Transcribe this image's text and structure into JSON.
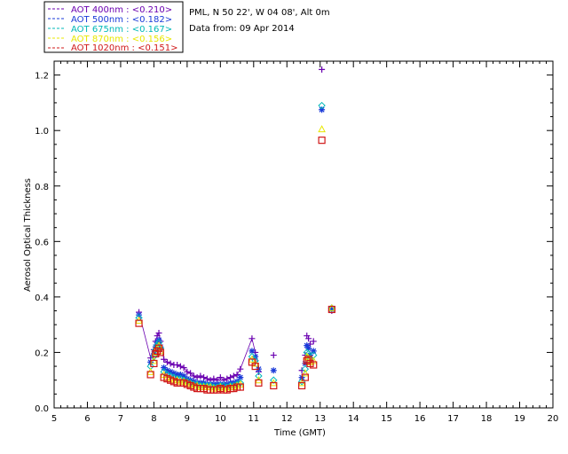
{
  "info": {
    "location": "PML, N 50 22', W 04 08', Alt 0m",
    "date_line": "Data from: 09 Apr 2014"
  },
  "chart_data": {
    "type": "scatter",
    "title": "",
    "xlabel": "Time (GMT)",
    "ylabel": "Aerosol Optical Thickness",
    "xlim": [
      5,
      20
    ],
    "ylim": [
      0.0,
      1.25
    ],
    "x_ticks": [
      "5",
      "6",
      "7",
      "8",
      "9",
      "10",
      "11",
      "12",
      "13",
      "14",
      "15",
      "16",
      "17",
      "18",
      "19",
      "20"
    ],
    "y_ticks": [
      "0.0",
      "0.2",
      "0.4",
      "0.6",
      "0.8",
      "1.0",
      "1.2"
    ],
    "grid": false,
    "legend_position": "top-left, outside plot",
    "series": [
      {
        "name": "AOT  400nm : <0.210>",
        "color": "#6a00b0",
        "marker": "plus",
        "x": [
          7.55,
          7.9,
          8.0,
          8.05,
          8.1,
          8.15,
          8.2,
          8.3,
          8.4,
          8.5,
          8.6,
          8.7,
          8.8,
          8.9,
          9.0,
          9.1,
          9.2,
          9.3,
          9.4,
          9.5,
          9.6,
          9.7,
          9.8,
          9.9,
          10.0,
          10.1,
          10.2,
          10.3,
          10.4,
          10.5,
          10.6,
          10.95,
          11.05,
          11.15,
          11.6,
          12.45,
          12.55,
          12.6,
          12.65,
          12.7,
          12.8,
          13.05,
          13.35
        ],
        "y": [
          0.345,
          0.18,
          0.21,
          0.24,
          0.26,
          0.27,
          0.24,
          0.175,
          0.165,
          0.16,
          0.155,
          0.155,
          0.15,
          0.145,
          0.13,
          0.125,
          0.115,
          0.11,
          0.115,
          0.11,
          0.105,
          0.1,
          0.105,
          0.1,
          0.11,
          0.1,
          0.105,
          0.11,
          0.115,
          0.12,
          0.14,
          0.25,
          0.2,
          0.13,
          0.19,
          0.135,
          0.19,
          0.26,
          0.25,
          0.23,
          0.24,
          1.22,
          0.35
        ]
      },
      {
        "name": "AOT  500nm : <0.182>",
        "color": "#1a3ad8",
        "marker": "asterisk",
        "x": [
          7.55,
          7.9,
          8.0,
          8.05,
          8.1,
          8.15,
          8.2,
          8.3,
          8.4,
          8.5,
          8.6,
          8.7,
          8.8,
          8.9,
          9.0,
          9.1,
          9.2,
          9.3,
          9.4,
          9.5,
          9.6,
          9.7,
          9.8,
          9.9,
          10.0,
          10.1,
          10.2,
          10.3,
          10.4,
          10.5,
          10.6,
          10.95,
          11.05,
          11.15,
          11.6,
          12.45,
          12.55,
          12.6,
          12.65,
          12.7,
          12.8,
          13.05,
          13.35
        ],
        "y": [
          0.335,
          0.165,
          0.195,
          0.22,
          0.235,
          0.245,
          0.22,
          0.145,
          0.135,
          0.13,
          0.125,
          0.12,
          0.12,
          0.115,
          0.105,
          0.1,
          0.095,
          0.09,
          0.09,
          0.09,
          0.085,
          0.085,
          0.085,
          0.085,
          0.085,
          0.085,
          0.085,
          0.09,
          0.09,
          0.095,
          0.11,
          0.205,
          0.185,
          0.14,
          0.135,
          0.11,
          0.16,
          0.225,
          0.215,
          0.19,
          0.205,
          1.075,
          0.355
        ]
      },
      {
        "name": "AOT  675nm : <0.167>",
        "color": "#00b8b8",
        "marker": "diamond",
        "x": [
          7.55,
          7.9,
          8.0,
          8.05,
          8.1,
          8.15,
          8.2,
          8.3,
          8.4,
          8.5,
          8.6,
          8.7,
          8.8,
          8.9,
          9.0,
          9.1,
          9.2,
          9.3,
          9.4,
          9.5,
          9.6,
          9.7,
          9.8,
          9.9,
          10.0,
          10.1,
          10.2,
          10.3,
          10.4,
          10.5,
          10.6,
          10.95,
          11.05,
          11.15,
          11.6,
          12.45,
          12.55,
          12.6,
          12.65,
          12.7,
          12.8,
          13.05,
          13.35
        ],
        "y": [
          0.325,
          0.15,
          0.185,
          0.21,
          0.225,
          0.235,
          0.215,
          0.13,
          0.12,
          0.115,
          0.11,
          0.105,
          0.105,
          0.1,
          0.095,
          0.09,
          0.085,
          0.085,
          0.08,
          0.08,
          0.08,
          0.08,
          0.075,
          0.075,
          0.08,
          0.08,
          0.075,
          0.08,
          0.08,
          0.085,
          0.09,
          0.185,
          0.17,
          0.115,
          0.1,
          0.095,
          0.14,
          0.2,
          0.195,
          0.175,
          0.19,
          1.09,
          0.36
        ]
      },
      {
        "name": "AOT  870nm : <0.156>",
        "color": "#e8e800",
        "marker": "triangle",
        "x": [
          7.55,
          7.9,
          8.0,
          8.05,
          8.1,
          8.15,
          8.2,
          8.3,
          8.4,
          8.5,
          8.6,
          8.7,
          8.8,
          8.9,
          9.0,
          9.1,
          9.2,
          9.3,
          9.4,
          9.5,
          9.6,
          9.7,
          9.8,
          9.9,
          10.0,
          10.1,
          10.2,
          10.3,
          10.4,
          10.5,
          10.6,
          10.95,
          11.05,
          11.15,
          11.6,
          12.45,
          12.55,
          12.6,
          12.65,
          12.7,
          12.8,
          13.05,
          13.35
        ],
        "y": [
          0.315,
          0.13,
          0.17,
          0.2,
          0.215,
          0.225,
          0.205,
          0.12,
          0.11,
          0.105,
          0.1,
          0.1,
          0.095,
          0.095,
          0.09,
          0.085,
          0.08,
          0.08,
          0.075,
          0.075,
          0.075,
          0.075,
          0.07,
          0.07,
          0.075,
          0.07,
          0.07,
          0.075,
          0.075,
          0.08,
          0.085,
          0.175,
          0.16,
          0.1,
          0.09,
          0.09,
          0.125,
          0.185,
          0.18,
          0.165,
          0.17,
          1.005,
          0.36
        ]
      },
      {
        "name": "AOT 1020nm : <0.151>",
        "color": "#d01818",
        "marker": "square",
        "x": [
          7.55,
          7.9,
          8.0,
          8.05,
          8.1,
          8.15,
          8.2,
          8.3,
          8.4,
          8.5,
          8.6,
          8.7,
          8.8,
          8.9,
          9.0,
          9.1,
          9.2,
          9.3,
          9.4,
          9.5,
          9.6,
          9.7,
          9.8,
          9.9,
          10.0,
          10.1,
          10.2,
          10.3,
          10.4,
          10.5,
          10.6,
          10.95,
          11.05,
          11.15,
          11.6,
          12.45,
          12.55,
          12.6,
          12.65,
          12.7,
          12.8,
          13.05,
          13.35
        ],
        "y": [
          0.305,
          0.12,
          0.16,
          0.195,
          0.205,
          0.215,
          0.2,
          0.11,
          0.105,
          0.1,
          0.095,
          0.09,
          0.09,
          0.09,
          0.085,
          0.08,
          0.075,
          0.07,
          0.07,
          0.07,
          0.065,
          0.065,
          0.065,
          0.065,
          0.07,
          0.065,
          0.065,
          0.07,
          0.07,
          0.075,
          0.075,
          0.165,
          0.15,
          0.09,
          0.08,
          0.08,
          0.11,
          0.17,
          0.175,
          0.16,
          0.155,
          0.965,
          0.355
        ]
      }
    ]
  }
}
